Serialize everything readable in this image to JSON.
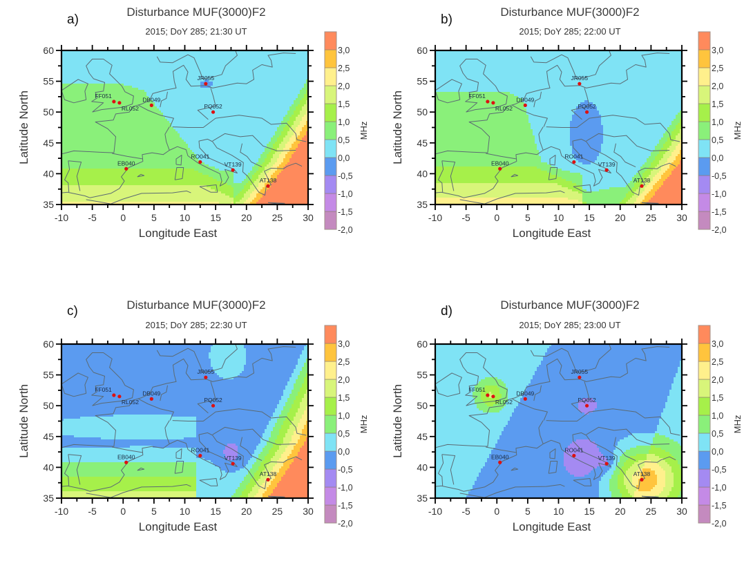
{
  "figure": {
    "colorbar": {
      "unit_label": "MHz",
      "levels": [
        -2.0,
        -1.5,
        -1.0,
        -0.5,
        0.0,
        0.5,
        1.0,
        1.5,
        2.0,
        2.5,
        3.0
      ],
      "tick_labels": [
        "-2,0",
        "-1,5",
        "-1,0",
        "-0,5",
        "0,0",
        "0,5",
        "1,0",
        "1,5",
        "2,0",
        "2,5",
        "3,0"
      ],
      "band_colors": [
        "#C48ABF",
        "#C48AE6",
        "#A48AF2",
        "#5B9BF0",
        "#7FE3F5",
        "#8AF07A",
        "#A6F04A",
        "#D8F57A",
        "#FFF08C",
        "#FFC43D",
        "#FF8A5C"
      ]
    }
  },
  "chart_data": [
    {
      "panel": "a)",
      "type": "heatmap",
      "title": "Disturbance MUF(3000)F2",
      "subtitle": "2015; DoY 285; 21:30 UT",
      "xlabel": "Longitude East",
      "ylabel": "Latitude North",
      "xlim": [
        -10,
        30
      ],
      "ylim": [
        35,
        60
      ],
      "xticks": [
        "-10",
        "-5",
        "0",
        "5",
        "10",
        "15",
        "20",
        "25",
        "30"
      ],
      "yticks": [
        "35",
        "40",
        "45",
        "50",
        "55",
        "60"
      ],
      "stations": [
        {
          "name": "FF051",
          "lon": -1.5,
          "lat": 51.7
        },
        {
          "name": "RL052",
          "lon": -0.6,
          "lat": 51.5
        },
        {
          "name": "DB049",
          "lon": 4.6,
          "lat": 51.1
        },
        {
          "name": "PQ052",
          "lon": 14.6,
          "lat": 50.0
        },
        {
          "name": "JR055",
          "lon": 13.4,
          "lat": 54.6
        },
        {
          "name": "EB040",
          "lon": 0.5,
          "lat": 40.8
        },
        {
          "name": "RO041",
          "lon": 12.5,
          "lat": 41.9
        },
        {
          "name": "VT139",
          "lon": 17.8,
          "lat": 40.6
        },
        {
          "name": "AT138",
          "lon": 23.5,
          "lat": 38.0
        }
      ],
      "regions": [
        {
          "level_min": 0.0,
          "level_max": 0.5,
          "description": "north-west, UK and central Europe"
        },
        {
          "level_min": -0.5,
          "level_max": 0.0,
          "description": "small area around JR055"
        },
        {
          "level_min": 0.5,
          "level_max": 1.0,
          "description": "France, western Mediterranean"
        },
        {
          "level_min": 1.0,
          "level_max": 1.5,
          "description": "Iberia, southern band"
        },
        {
          "level_min": 3.0,
          "level_max": 3.5,
          "description": "Greece / south-east"
        }
      ]
    },
    {
      "panel": "b)",
      "type": "heatmap",
      "title": "Disturbance MUF(3000)F2",
      "subtitle": "2015; DoY 285; 22:00 UT",
      "xlabel": "Longitude East",
      "ylabel": "Latitude North",
      "xlim": [
        -10,
        30
      ],
      "ylim": [
        35,
        60
      ],
      "xticks": [
        "-10",
        "-5",
        "0",
        "5",
        "10",
        "15",
        "20",
        "25",
        "30"
      ],
      "yticks": [
        "35",
        "40",
        "45",
        "50",
        "55",
        "60"
      ],
      "stations": [
        {
          "name": "FF051",
          "lon": -1.5,
          "lat": 51.7
        },
        {
          "name": "RL052",
          "lon": -0.6,
          "lat": 51.5
        },
        {
          "name": "DB049",
          "lon": 4.6,
          "lat": 51.1
        },
        {
          "name": "PQ052",
          "lon": 14.6,
          "lat": 50.0
        },
        {
          "name": "JR055",
          "lon": 13.4,
          "lat": 54.6
        },
        {
          "name": "EB040",
          "lon": 0.5,
          "lat": 40.8
        },
        {
          "name": "RO041",
          "lon": 12.5,
          "lat": 41.9
        },
        {
          "name": "VT139",
          "lon": 17.8,
          "lat": 40.6
        },
        {
          "name": "AT138",
          "lon": 23.5,
          "lat": 38.0
        }
      ],
      "regions": [
        {
          "level_min": 0.0,
          "level_max": 0.5,
          "description": "north and central Europe"
        },
        {
          "level_min": -0.5,
          "level_max": 0.0,
          "description": "Italy to PQ052 lobe"
        },
        {
          "level_min": 0.5,
          "level_max": 1.0,
          "description": "France, Mediterranean"
        },
        {
          "level_min": 1.0,
          "level_max": 1.5,
          "description": "Iberia"
        },
        {
          "level_min": 3.0,
          "level_max": 3.5,
          "description": "Greece / south-east"
        }
      ]
    },
    {
      "panel": "c)",
      "type": "heatmap",
      "title": "Disturbance MUF(3000)F2",
      "subtitle": "2015; DoY 285; 22:30 UT",
      "xlabel": "Longitude East",
      "ylabel": "Latitude North",
      "xlim": [
        -10,
        30
      ],
      "ylim": [
        35,
        60
      ],
      "xticks": [
        "-10",
        "-5",
        "0",
        "5",
        "10",
        "15",
        "20",
        "25",
        "30"
      ],
      "yticks": [
        "35",
        "40",
        "45",
        "50",
        "55",
        "60"
      ],
      "stations": [
        {
          "name": "FF051",
          "lon": -1.5,
          "lat": 51.7
        },
        {
          "name": "RL052",
          "lon": -0.6,
          "lat": 51.5
        },
        {
          "name": "DB049",
          "lon": 4.6,
          "lat": 51.1
        },
        {
          "name": "PQ052",
          "lon": 14.6,
          "lat": 50.0
        },
        {
          "name": "JR055",
          "lon": 13.4,
          "lat": 54.6
        },
        {
          "name": "EB040",
          "lon": 0.5,
          "lat": 40.8
        },
        {
          "name": "RO041",
          "lon": 12.5,
          "lat": 41.9
        },
        {
          "name": "VT139",
          "lon": 17.8,
          "lat": 40.6
        },
        {
          "name": "AT138",
          "lon": 23.5,
          "lat": 38.0
        }
      ],
      "regions": [
        {
          "level_min": -0.5,
          "level_max": 0.0,
          "description": "UK, central Europe to Italy"
        },
        {
          "level_min": -1.0,
          "level_max": -0.5,
          "description": "southern Italy around VT139"
        },
        {
          "level_min": 0.0,
          "level_max": 0.5,
          "description": "Baltic and west band"
        },
        {
          "level_min": 1.0,
          "level_max": 1.5,
          "description": "Iberia"
        },
        {
          "level_min": 3.0,
          "level_max": 3.5,
          "description": "south-east corner"
        }
      ]
    },
    {
      "panel": "d)",
      "type": "heatmap",
      "title": "Disturbance MUF(3000)F2",
      "subtitle": "2015; DoY 285; 23:00 UT",
      "xlabel": "Longitude East",
      "ylabel": "Latitude North",
      "xlim": [
        -10,
        30
      ],
      "ylim": [
        35,
        60
      ],
      "xticks": [
        "-10",
        "-5",
        "0",
        "5",
        "10",
        "15",
        "20",
        "25",
        "30"
      ],
      "yticks": [
        "35",
        "40",
        "45",
        "50",
        "55",
        "60"
      ],
      "stations": [
        {
          "name": "FF051",
          "lon": -1.5,
          "lat": 51.7
        },
        {
          "name": "RL052",
          "lon": -0.6,
          "lat": 51.5
        },
        {
          "name": "DB049",
          "lon": 4.6,
          "lat": 51.1
        },
        {
          "name": "PQ052",
          "lon": 14.6,
          "lat": 50.0
        },
        {
          "name": "JR055",
          "lon": 13.4,
          "lat": 54.6
        },
        {
          "name": "EB040",
          "lon": 0.5,
          "lat": 40.8
        },
        {
          "name": "RO041",
          "lon": 12.5,
          "lat": 41.9
        },
        {
          "name": "VT139",
          "lon": 17.8,
          "lat": 40.6
        },
        {
          "name": "AT138",
          "lon": 23.5,
          "lat": 38.0
        }
      ],
      "regions": [
        {
          "level_min": -0.5,
          "level_max": 0.0,
          "description": "central diagonal band"
        },
        {
          "level_min": 0.0,
          "level_max": 0.5,
          "description": "west and east edges"
        },
        {
          "level_min": 1.0,
          "level_max": 1.5,
          "description": "UK bubble"
        },
        {
          "level_min": -1.0,
          "level_max": -0.5,
          "description": "PQ052 and Italy bubbles"
        },
        {
          "level_min": 2.0,
          "level_max": 3.0,
          "description": "Greece bubble around AT138"
        }
      ]
    }
  ]
}
